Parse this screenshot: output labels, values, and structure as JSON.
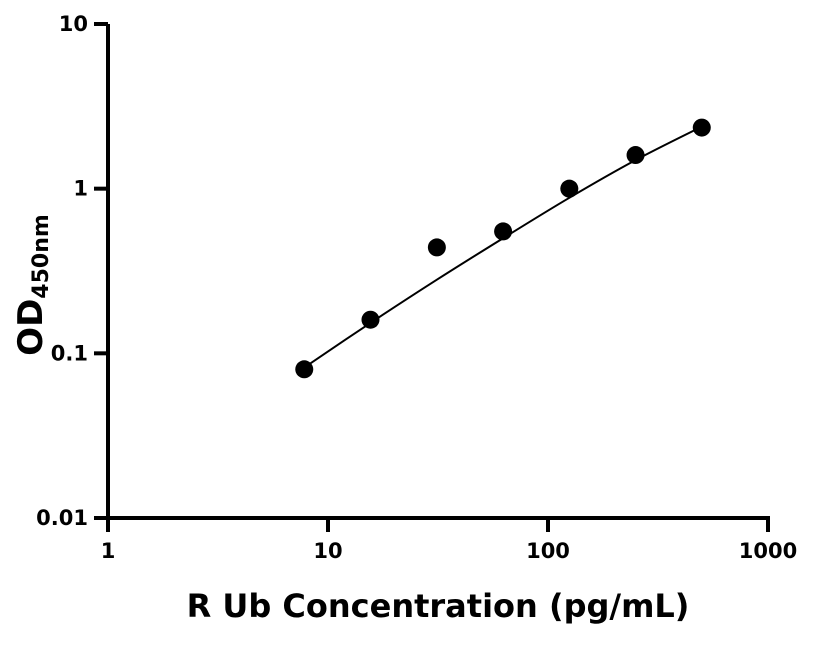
{
  "chart_data": {
    "type": "scatter",
    "title": "",
    "xlabel": "R Ub Concentration (pg/mL)",
    "ylabel": {
      "main": "OD",
      "subscript": "450nm"
    },
    "x_scale": "log",
    "y_scale": "log",
    "xlim": [
      1,
      1000
    ],
    "ylim": [
      0.01,
      10
    ],
    "x_ticks": [
      {
        "value": 1,
        "label": "1"
      },
      {
        "value": 10,
        "label": "10"
      },
      {
        "value": 100,
        "label": "100"
      },
      {
        "value": 1000,
        "label": "1000"
      }
    ],
    "y_ticks": [
      {
        "value": 10,
        "label": "10"
      },
      {
        "value": 1,
        "label": "1"
      },
      {
        "value": 0.1,
        "label": "0.1"
      },
      {
        "value": 0.01,
        "label": "0.01"
      }
    ],
    "grid": false,
    "legend": false,
    "series": [
      {
        "points": [
          {
            "x": 7.8,
            "y": 0.08
          },
          {
            "x": 15.6,
            "y": 0.16
          },
          {
            "x": 31.25,
            "y": 0.44
          },
          {
            "x": 62.5,
            "y": 0.55
          },
          {
            "x": 125,
            "y": 1.0
          },
          {
            "x": 250,
            "y": 1.6
          },
          {
            "x": 500,
            "y": 2.35
          }
        ],
        "color": "#000000"
      }
    ],
    "fit_curve": {
      "color": "#000000",
      "points": [
        {
          "x": 7.8,
          "y": 0.082
        },
        {
          "x": 15.6,
          "y": 0.153
        },
        {
          "x": 31.25,
          "y": 0.28
        },
        {
          "x": 62.5,
          "y": 0.5
        },
        {
          "x": 125,
          "y": 0.88
        },
        {
          "x": 250,
          "y": 1.49
        },
        {
          "x": 500,
          "y": 2.38
        }
      ]
    }
  }
}
